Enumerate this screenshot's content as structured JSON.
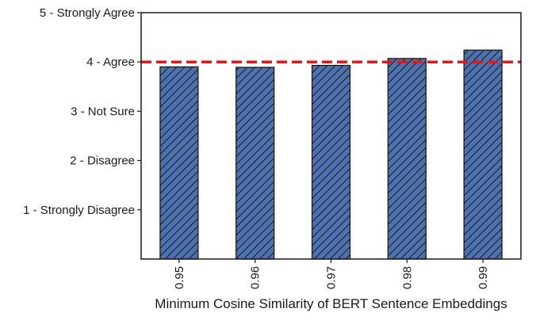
{
  "chart_data": {
    "type": "bar",
    "title": "",
    "xlabel": "Minimum Cosine Similarity of BERT Sentence Embeddings",
    "ylabel": "",
    "categories": [
      "0.95",
      "0.96",
      "0.97",
      "0.98",
      "0.99"
    ],
    "values": [
      3.9,
      3.89,
      3.93,
      4.07,
      4.24
    ],
    "ylim": [
      0,
      5
    ],
    "yticks": [
      {
        "value": 1,
        "label": "1 - Strongly Disagree"
      },
      {
        "value": 2,
        "label": "2 - Disagree"
      },
      {
        "value": 3,
        "label": "3 - Not Sure"
      },
      {
        "value": 4,
        "label": "4 - Agree"
      },
      {
        "value": 5,
        "label": "5 - Strongly Agree"
      }
    ],
    "reference_line": {
      "value": 4,
      "color": "#e8161b",
      "style": "dashed"
    },
    "bar_color": "#4c72b0",
    "bar_hatch": "diagonal",
    "grid": false,
    "legend": "none"
  }
}
